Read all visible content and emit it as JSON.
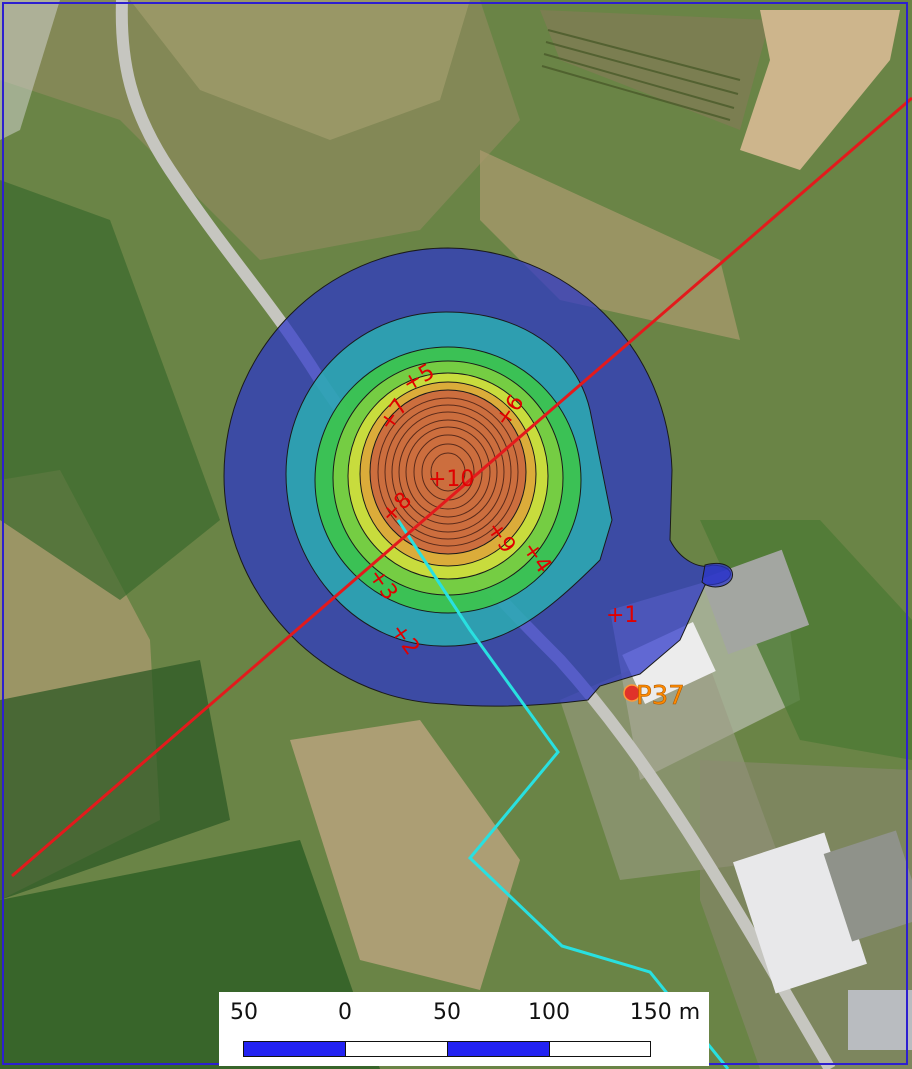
{
  "map": {
    "site": {
      "label": "P37",
      "color": "#e0322a"
    },
    "contour_labels": [
      "+1",
      "+2",
      "+3",
      "+4",
      "+5",
      "+6",
      "+7",
      "+8",
      "+9",
      "+10"
    ],
    "line_colors": {
      "transect": "#e31a1c",
      "boundary": "#29e0e0"
    },
    "zone_colors": [
      "#2b35c9",
      "#2ab3b3",
      "#3fc93f",
      "#dfe03c",
      "#e0a03a",
      "#c86040"
    ]
  },
  "scalebar": {
    "ticks": [
      "50",
      "0",
      "50",
      "100",
      "150 m"
    ]
  }
}
